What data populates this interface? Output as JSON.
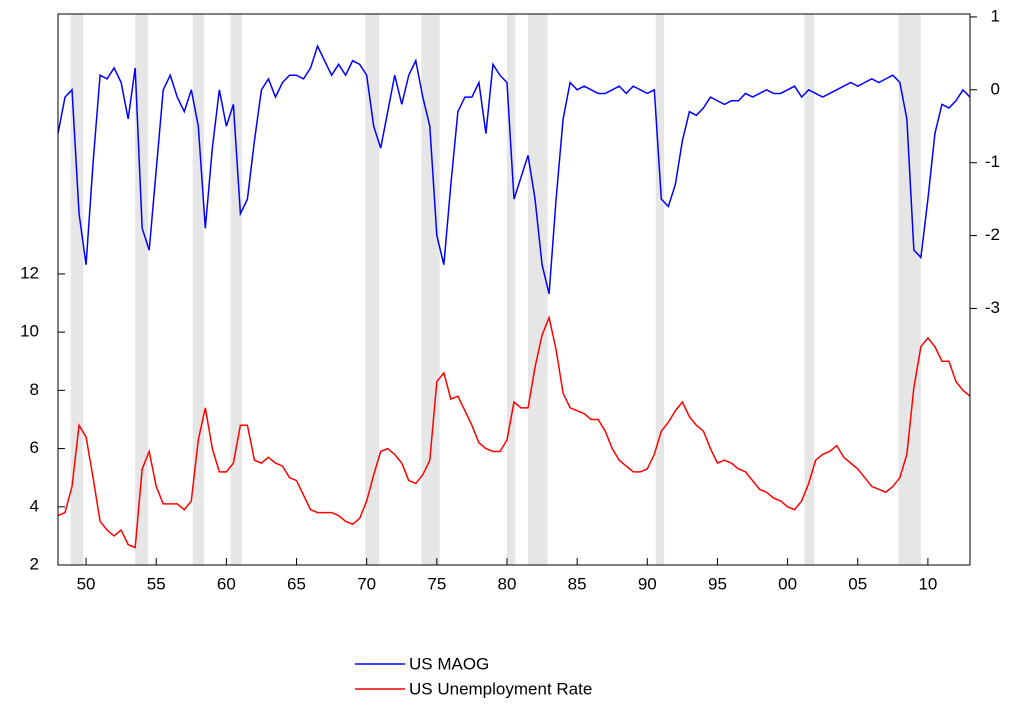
{
  "chart_data": {
    "type": "line",
    "x": [
      1948,
      1948.5,
      1949,
      1949.5,
      1950,
      1950.5,
      1951,
      1951.5,
      1952,
      1952.5,
      1953,
      1953.5,
      1954,
      1954.5,
      1955,
      1955.5,
      1956,
      1956.5,
      1957,
      1957.5,
      1958,
      1958.5,
      1959,
      1959.5,
      1960,
      1960.5,
      1961,
      1961.5,
      1962,
      1962.5,
      1963,
      1963.5,
      1964,
      1964.5,
      1965,
      1965.5,
      1966,
      1966.5,
      1967,
      1967.5,
      1968,
      1968.5,
      1969,
      1969.5,
      1970,
      1970.5,
      1971,
      1971.5,
      1972,
      1972.5,
      1973,
      1973.5,
      1974,
      1974.5,
      1975,
      1975.5,
      1976,
      1976.5,
      1977,
      1977.5,
      1978,
      1978.5,
      1979,
      1979.5,
      1980,
      1980.5,
      1981,
      1981.5,
      1982,
      1982.5,
      1983,
      1983.5,
      1984,
      1984.5,
      1985,
      1985.5,
      1986,
      1986.5,
      1987,
      1987.5,
      1988,
      1988.5,
      1989,
      1989.5,
      1990,
      1990.5,
      1991,
      1991.5,
      1992,
      1992.5,
      1993,
      1993.5,
      1994,
      1994.5,
      1995,
      1995.5,
      1996,
      1996.5,
      1997,
      1997.5,
      1998,
      1998.5,
      1999,
      1999.5,
      2000,
      2000.5,
      2001,
      2001.5,
      2002,
      2002.5,
      2003,
      2003.5,
      2004,
      2004.5,
      2005,
      2005.5,
      2006,
      2006.5,
      2007,
      2007.5,
      2008,
      2008.5,
      2009,
      2009.5,
      2010,
      2010.5,
      2011,
      2011.5,
      2012,
      2012.5,
      2013
    ],
    "series": [
      {
        "name": "US MAOG",
        "color": "#0000ff",
        "axis": "y2",
        "values": [
          -0.6,
          -0.1,
          0.0,
          -1.7,
          -2.4,
          -1.0,
          0.2,
          0.15,
          0.3,
          0.1,
          -0.4,
          0.3,
          -1.9,
          -2.2,
          -1.1,
          0.0,
          0.2,
          -0.1,
          -0.3,
          0.0,
          -0.5,
          -1.9,
          -0.8,
          0.0,
          -0.5,
          -0.2,
          -1.7,
          -1.5,
          -0.7,
          0.0,
          0.15,
          -0.1,
          0.1,
          0.2,
          0.2,
          0.15,
          0.3,
          0.6,
          0.4,
          0.2,
          0.35,
          0.2,
          0.4,
          0.35,
          0.2,
          -0.5,
          -0.8,
          -0.3,
          0.2,
          -0.2,
          0.2,
          0.4,
          -0.1,
          -0.5,
          -2.0,
          -2.4,
          -1.3,
          -0.3,
          -0.1,
          -0.1,
          0.1,
          -0.6,
          0.35,
          0.2,
          0.1,
          -1.5,
          -1.2,
          -0.9,
          -1.5,
          -2.4,
          -2.8,
          -1.5,
          -0.4,
          0.1,
          0.0,
          0.05,
          0.0,
          -0.05,
          -0.05,
          0.0,
          0.05,
          -0.05,
          0.05,
          0.0,
          -0.05,
          0.0,
          -1.5,
          -1.6,
          -1.3,
          -0.7,
          -0.3,
          -0.35,
          -0.25,
          -0.1,
          -0.15,
          -0.2,
          -0.15,
          -0.15,
          -0.05,
          -0.1,
          -0.05,
          0.0,
          -0.05,
          -0.05,
          0.0,
          0.05,
          -0.1,
          0.0,
          -0.05,
          -0.1,
          -0.05,
          0.0,
          0.05,
          0.1,
          0.05,
          0.1,
          0.15,
          0.1,
          0.15,
          0.2,
          0.1,
          -0.4,
          -2.2,
          -2.3,
          -1.5,
          -0.6,
          -0.2,
          -0.25,
          -0.15,
          0.0,
          -0.1
        ]
      },
      {
        "name": "US Unemployment Rate",
        "color": "#ff0000",
        "values": [
          3.7,
          3.8,
          4.7,
          6.8,
          6.4,
          5.0,
          3.5,
          3.2,
          3.0,
          3.2,
          2.7,
          2.6,
          5.3,
          5.9,
          4.7,
          4.1,
          4.1,
          4.1,
          3.9,
          4.2,
          6.3,
          7.4,
          6.0,
          5.2,
          5.2,
          5.5,
          6.8,
          6.8,
          5.6,
          5.5,
          5.7,
          5.5,
          5.4,
          5.0,
          4.9,
          4.4,
          3.9,
          3.8,
          3.8,
          3.8,
          3.7,
          3.5,
          3.4,
          3.6,
          4.2,
          5.1,
          5.9,
          6.0,
          5.8,
          5.5,
          4.9,
          4.8,
          5.1,
          5.6,
          8.3,
          8.6,
          7.7,
          7.8,
          7.3,
          6.8,
          6.2,
          6.0,
          5.9,
          5.9,
          6.3,
          7.6,
          7.4,
          7.4,
          8.8,
          9.9,
          10.5,
          9.4,
          7.9,
          7.4,
          7.3,
          7.2,
          7.0,
          7.0,
          6.6,
          6.0,
          5.6,
          5.4,
          5.2,
          5.2,
          5.3,
          5.8,
          6.6,
          6.9,
          7.3,
          7.6,
          7.1,
          6.8,
          6.6,
          6.0,
          5.5,
          5.6,
          5.5,
          5.3,
          5.2,
          4.9,
          4.6,
          4.5,
          4.3,
          4.2,
          4.0,
          3.9,
          4.2,
          4.8,
          5.6,
          5.8,
          5.9,
          6.1,
          5.7,
          5.5,
          5.3,
          5.0,
          4.7,
          4.6,
          4.5,
          4.7,
          5.0,
          5.8,
          8.1,
          9.5,
          9.8,
          9.5,
          9.0,
          9.0,
          8.3,
          8.0,
          7.8
        ]
      }
    ],
    "recessions": [
      {
        "start": 1948.9,
        "end": 1949.8
      },
      {
        "start": 1953.5,
        "end": 1954.4
      },
      {
        "start": 1957.6,
        "end": 1958.4
      },
      {
        "start": 1960.3,
        "end": 1961.1
      },
      {
        "start": 1969.9,
        "end": 1970.9
      },
      {
        "start": 1973.9,
        "end": 1975.2
      },
      {
        "start": 1980.0,
        "end": 1980.6
      },
      {
        "start": 1981.5,
        "end": 1982.9
      },
      {
        "start": 1990.6,
        "end": 1991.2
      },
      {
        "start": 2001.2,
        "end": 2001.9
      },
      {
        "start": 2007.9,
        "end": 2009.5
      }
    ],
    "recession_color": "#e6e6e6",
    "xlim": [
      1948,
      2013
    ],
    "xticks": [
      {
        "value": 1950,
        "label": "50"
      },
      {
        "value": 1955,
        "label": "55"
      },
      {
        "value": 1960,
        "label": "60"
      },
      {
        "value": 1965,
        "label": "65"
      },
      {
        "value": 1970,
        "label": "70"
      },
      {
        "value": 1975,
        "label": "75"
      },
      {
        "value": 1980,
        "label": "80"
      },
      {
        "value": 1985,
        "label": "85"
      },
      {
        "value": 1990,
        "label": "90"
      },
      {
        "value": 1995,
        "label": "95"
      },
      {
        "value": 2000,
        "label": "00"
      },
      {
        "value": 2005,
        "label": "05"
      },
      {
        "value": 2010,
        "label": "10"
      }
    ],
    "ylim": [
      2,
      20.93
    ],
    "yticks": [
      2,
      4,
      6,
      8,
      10,
      12
    ],
    "y2lim": [
      -6.52,
      1.04
    ],
    "y2ticks": [
      1,
      0,
      -1,
      -2,
      -3
    ],
    "legend": "bottom"
  }
}
